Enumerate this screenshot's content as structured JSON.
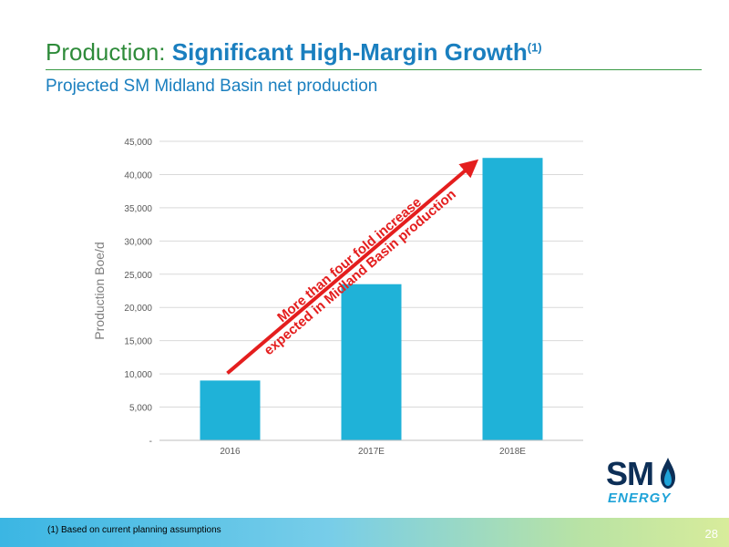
{
  "slide": {
    "title_prefix": "Production: ",
    "title_bold": "Significant High-Margin Growth",
    "title_sup": "(1)",
    "subtitle": "Projected SM Midland Basin net production",
    "footnote": "(1)   Based on current planning assumptions",
    "page_number": "28"
  },
  "logo": {
    "sm": "SM",
    "energy": "ENERGY"
  },
  "chart_data": {
    "type": "bar",
    "categories": [
      "2016",
      "2017E",
      "2018E"
    ],
    "values": [
      9000,
      23500,
      42500
    ],
    "ylabel": "Production Boe/d",
    "xlabel": "",
    "ylim": [
      0,
      45000
    ],
    "yticks": [
      0,
      5000,
      10000,
      15000,
      20000,
      25000,
      30000,
      35000,
      40000,
      45000
    ],
    "ytick_labels": [
      "-",
      "5,000",
      "10,000",
      "15,000",
      "20,000",
      "25,000",
      "30,000",
      "35,000",
      "40,000",
      "45,000"
    ],
    "grid": true,
    "bar_color": "#1fb2d8",
    "annotation": {
      "line1": "More than four fold increase",
      "line2": "expected in Midland Basin production",
      "color": "#e41e1e",
      "from_category": "2016",
      "to_category": "2018E"
    }
  }
}
